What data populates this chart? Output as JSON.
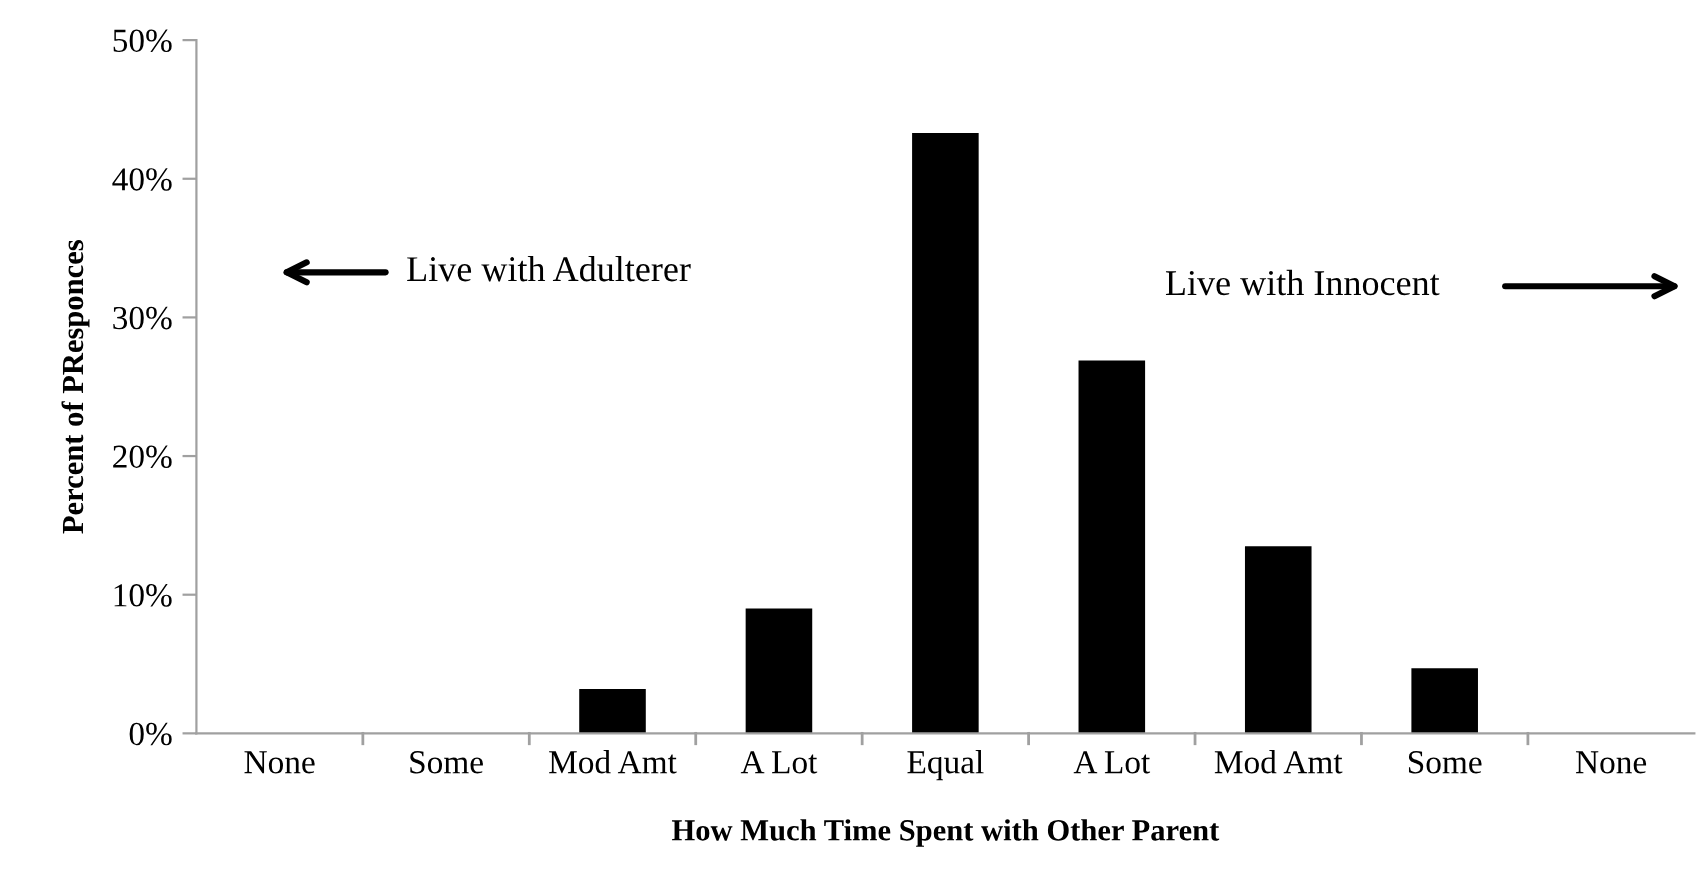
{
  "chart_data": {
    "type": "bar",
    "xlabel": "How Much Time Spent with Other Parent",
    "ylabel": "Percent of PResponces",
    "categories": [
      "None",
      "Some",
      "Mod Amt",
      "A Lot",
      "Equal",
      "A Lot",
      "Mod Amt",
      "Some",
      "None"
    ],
    "values": [
      0,
      0,
      3.2,
      9.0,
      43.3,
      26.9,
      13.5,
      4.7,
      0
    ],
    "color": "#000000",
    "ylim": [
      0,
      50
    ],
    "yticks": [
      {
        "value": 0,
        "label": "0%"
      },
      {
        "value": 10,
        "label": "10%"
      },
      {
        "value": 20,
        "label": "20%"
      },
      {
        "value": 30,
        "label": "30%"
      },
      {
        "value": 40,
        "label": "40%"
      },
      {
        "value": 50,
        "label": "50%"
      }
    ],
    "annotations": [
      "Live with Adulterer",
      "Live with Innocent"
    ]
  }
}
